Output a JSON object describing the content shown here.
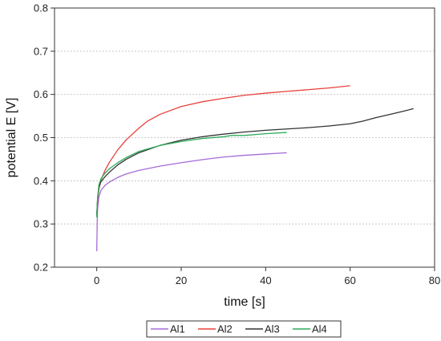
{
  "chart_data": {
    "type": "line",
    "title": "",
    "xlabel": "time [s]",
    "ylabel": "potential E [V]",
    "xlim": [
      -10,
      80
    ],
    "ylim": [
      0.2,
      0.8
    ],
    "xticks": [
      0,
      20,
      40,
      60,
      80
    ],
    "yticks": [
      0.2,
      0.3,
      0.4,
      0.5,
      0.6,
      0.7,
      0.8
    ],
    "grid": "horizontal dotted",
    "legend_position": "bottom",
    "series": [
      {
        "name": "Al1",
        "color": "#a66bd8",
        "points": [
          [
            0.0,
            0.237
          ],
          [
            0.1,
            0.3
          ],
          [
            0.2,
            0.335
          ],
          [
            0.5,
            0.362
          ],
          [
            1,
            0.378
          ],
          [
            2,
            0.39
          ],
          [
            3,
            0.397
          ],
          [
            5,
            0.408
          ],
          [
            7,
            0.416
          ],
          [
            10,
            0.424
          ],
          [
            15,
            0.434
          ],
          [
            20,
            0.442
          ],
          [
            25,
            0.449
          ],
          [
            30,
            0.455
          ],
          [
            35,
            0.459
          ],
          [
            40,
            0.462
          ],
          [
            45,
            0.465
          ]
        ]
      },
      {
        "name": "Al2",
        "color": "#e8413c",
        "points": [
          [
            0.0,
            0.32
          ],
          [
            0.2,
            0.355
          ],
          [
            0.5,
            0.38
          ],
          [
            1,
            0.402
          ],
          [
            2,
            0.425
          ],
          [
            3,
            0.443
          ],
          [
            5,
            0.472
          ],
          [
            7,
            0.495
          ],
          [
            10,
            0.522
          ],
          [
            12,
            0.538
          ],
          [
            15,
            0.554
          ],
          [
            20,
            0.572
          ],
          [
            25,
            0.583
          ],
          [
            30,
            0.591
          ],
          [
            35,
            0.598
          ],
          [
            40,
            0.603
          ],
          [
            45,
            0.607
          ],
          [
            50,
            0.611
          ],
          [
            55,
            0.615
          ],
          [
            60,
            0.62
          ]
        ]
      },
      {
        "name": "Al3",
        "color": "#333333",
        "points": [
          [
            0.0,
            0.32
          ],
          [
            0.2,
            0.36
          ],
          [
            0.5,
            0.385
          ],
          [
            1,
            0.398
          ],
          [
            2,
            0.41
          ],
          [
            3,
            0.42
          ],
          [
            5,
            0.437
          ],
          [
            7,
            0.45
          ],
          [
            10,
            0.465
          ],
          [
            15,
            0.482
          ],
          [
            20,
            0.494
          ],
          [
            25,
            0.502
          ],
          [
            30,
            0.508
          ],
          [
            35,
            0.513
          ],
          [
            40,
            0.517
          ],
          [
            45,
            0.52
          ],
          [
            50,
            0.523
          ],
          [
            55,
            0.527
          ],
          [
            60,
            0.532
          ],
          [
            63,
            0.538
          ],
          [
            66,
            0.546
          ],
          [
            70,
            0.555
          ],
          [
            73,
            0.562
          ],
          [
            75,
            0.567
          ]
        ]
      },
      {
        "name": "Al4",
        "color": "#2eab5a",
        "points": [
          [
            0.0,
            0.315
          ],
          [
            0.2,
            0.36
          ],
          [
            0.5,
            0.39
          ],
          [
            1,
            0.405
          ],
          [
            2,
            0.418
          ],
          [
            3,
            0.428
          ],
          [
            5,
            0.442
          ],
          [
            7,
            0.454
          ],
          [
            10,
            0.468
          ],
          [
            15,
            0.482
          ],
          [
            20,
            0.491
          ],
          [
            25,
            0.498
          ],
          [
            30,
            0.502
          ],
          [
            32,
            0.505
          ],
          [
            35,
            0.505
          ],
          [
            40,
            0.509
          ],
          [
            45,
            0.512
          ]
        ]
      }
    ]
  }
}
